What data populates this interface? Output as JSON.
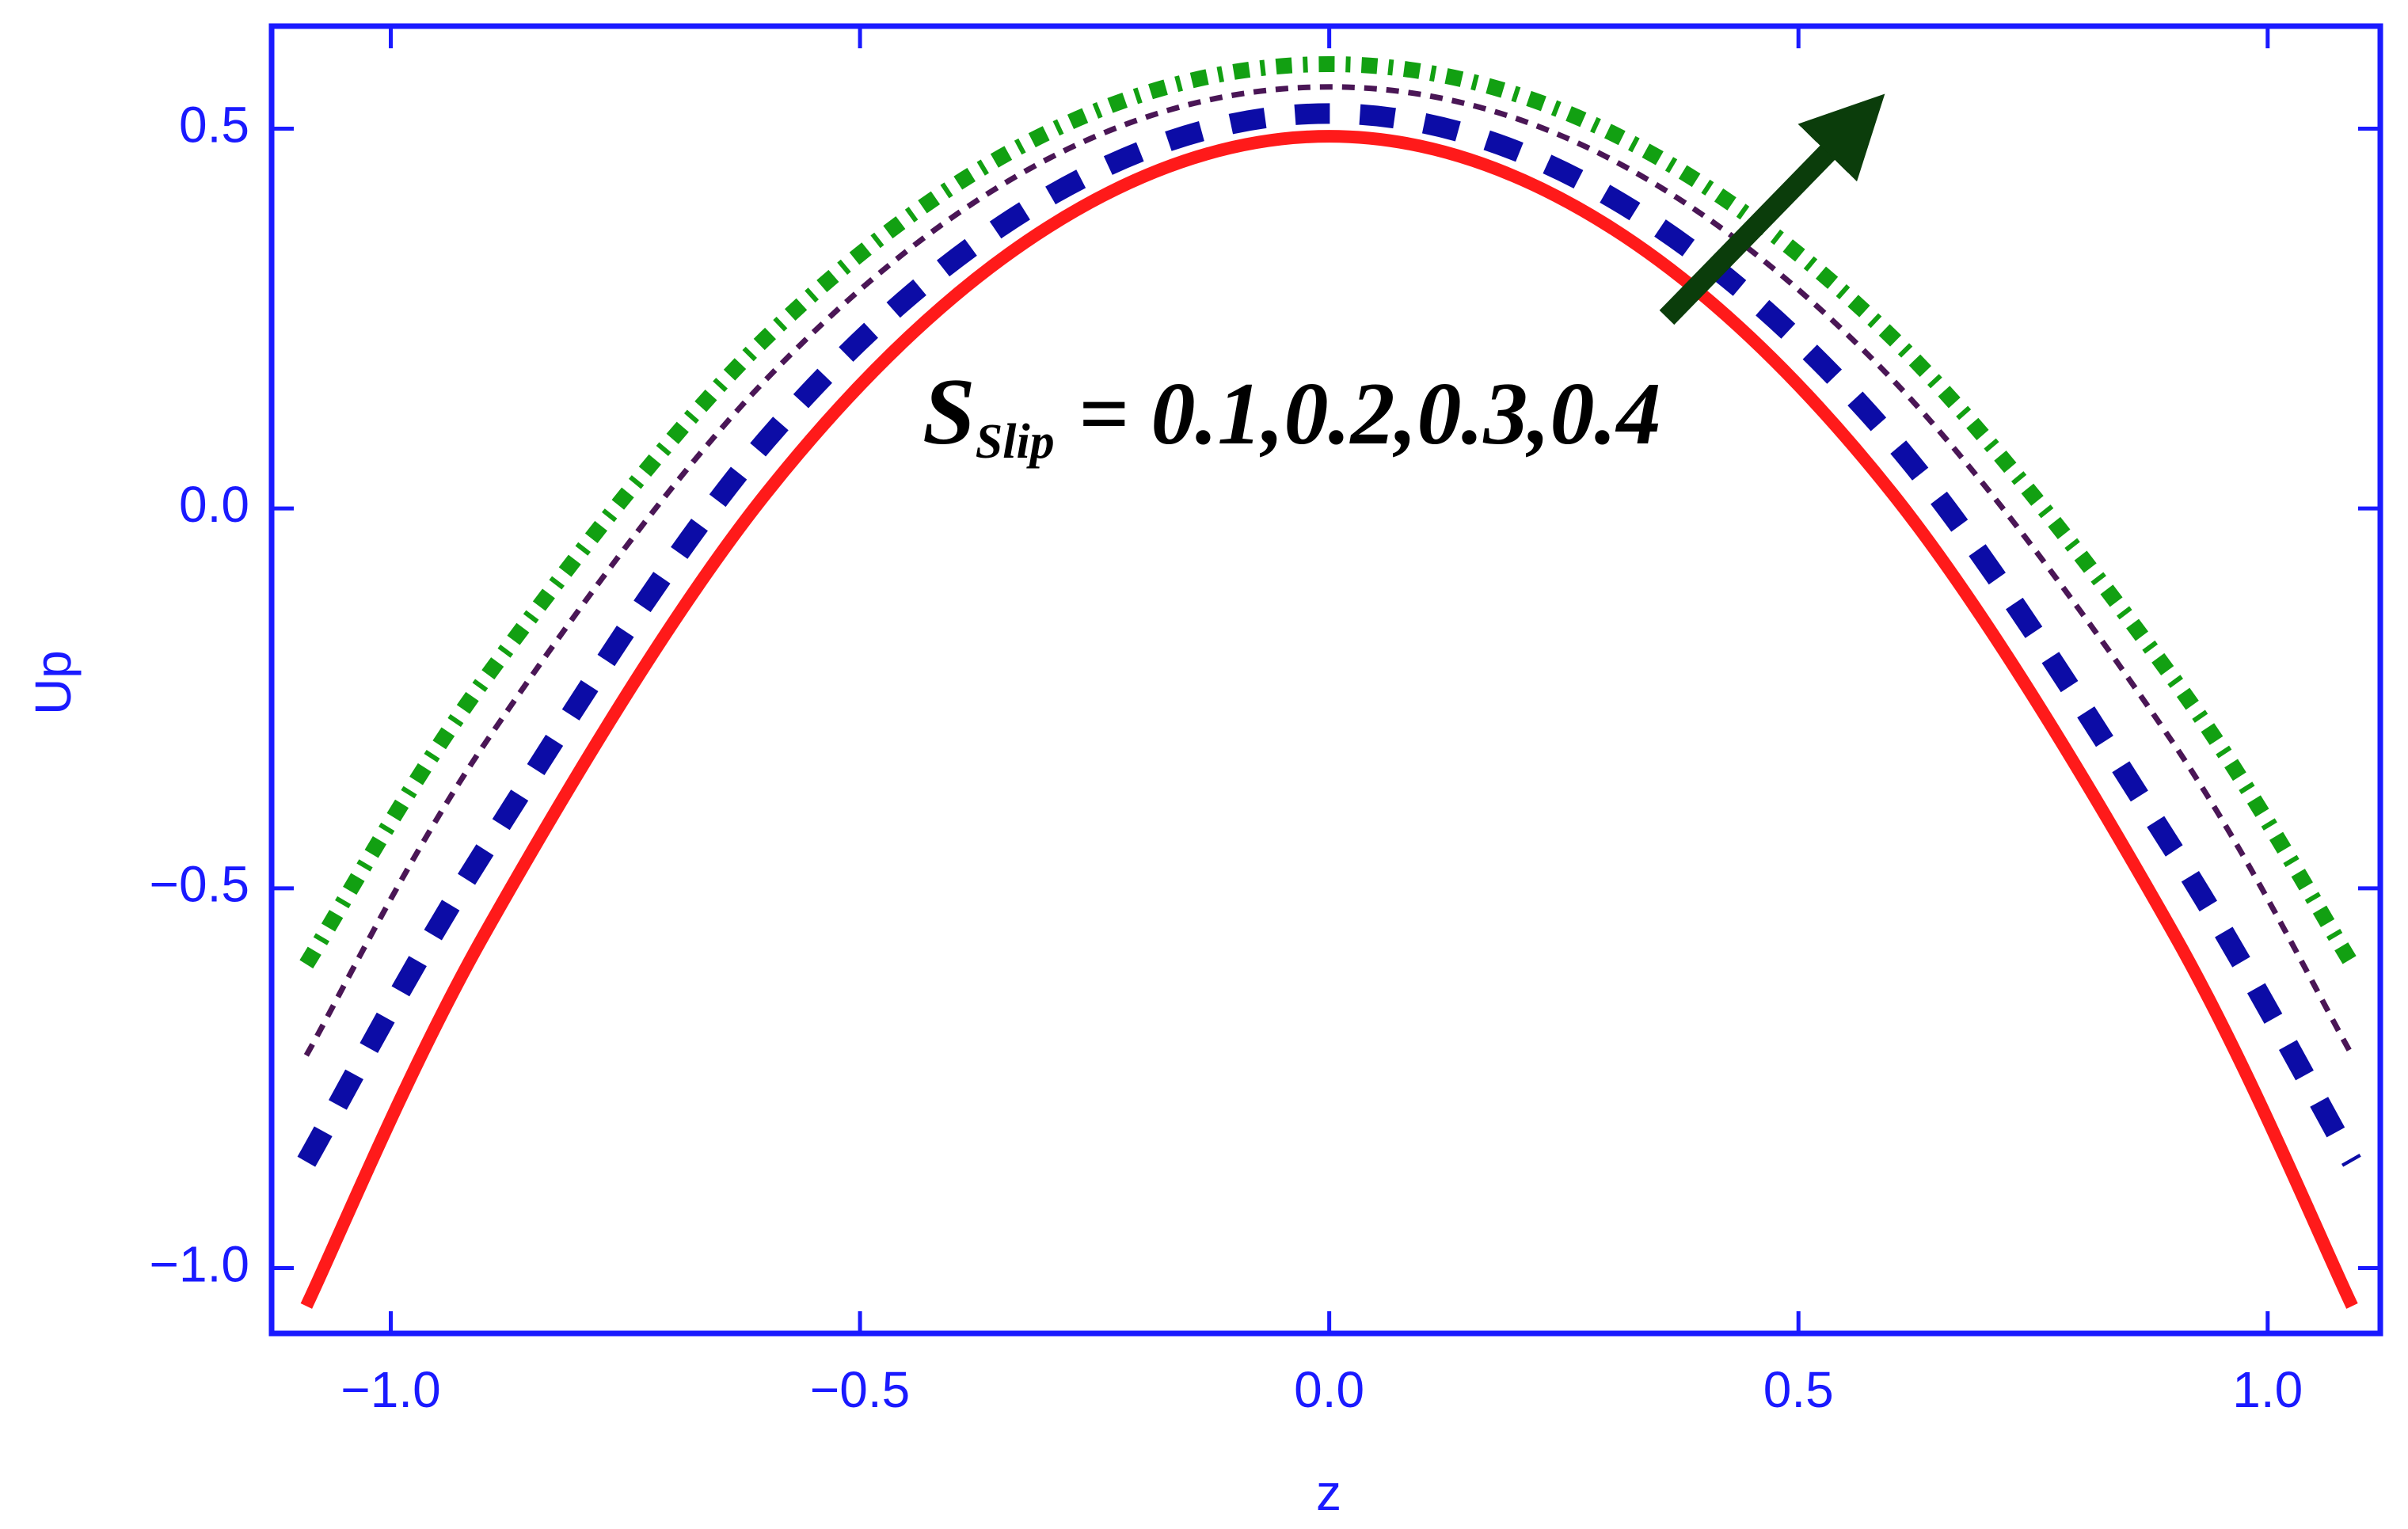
{
  "chart_data": {
    "type": "line",
    "x": [
      -1.09,
      -0.9,
      -0.6,
      -0.3,
      0,
      0.3,
      0.6,
      0.9,
      1.09
    ],
    "series": [
      {
        "color": "#ff1a1a",
        "style": "solid",
        "values": [
          -1.05,
          -0.56,
          0.02,
          0.37,
          0.49,
          0.37,
          0.02,
          -0.56,
          -1.05
        ]
      },
      {
        "color": "#0c0ca6",
        "style": "dashed",
        "values": [
          -0.86,
          -0.45,
          0.09,
          0.41,
          0.52,
          0.41,
          0.09,
          -0.45,
          -0.86
        ]
      },
      {
        "color": "#4a1656",
        "style": "dotted",
        "values": [
          -0.72,
          -0.31,
          0.17,
          0.46,
          0.555,
          0.46,
          0.17,
          -0.31,
          -0.72
        ]
      },
      {
        "color": "#12a012",
        "style": "dotdash",
        "values": [
          -0.6,
          -0.225,
          0.225,
          0.495,
          0.585,
          0.495,
          0.225,
          -0.225,
          -0.6
        ]
      }
    ],
    "xlabel": "z",
    "ylabel": "Up",
    "xlim": [
      -1.127,
      1.12
    ],
    "ylim": [
      -1.086,
      0.635
    ],
    "xticks": [
      {
        "value": -1.0,
        "label": "−1.0"
      },
      {
        "value": -0.5,
        "label": "−0.5"
      },
      {
        "value": 0.0,
        "label": "0.0"
      },
      {
        "value": 0.5,
        "label": "0.5"
      },
      {
        "value": 1.0,
        "label": "1.0"
      }
    ],
    "yticks": [
      {
        "value": -1.0,
        "label": "−1.0"
      },
      {
        "value": -0.5,
        "label": "−0.5"
      },
      {
        "value": 0.0,
        "label": "0.0"
      },
      {
        "value": 0.5,
        "label": "0.5"
      }
    ],
    "axis_color": "#1a1aff",
    "annotation": {
      "symbol": "S",
      "subscript": "Slip",
      "text": "= 0.1,0.2,0.3,0.4"
    }
  }
}
